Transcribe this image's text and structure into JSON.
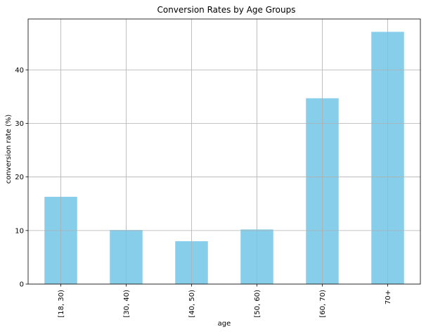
{
  "chart_data": {
    "type": "bar",
    "title": "Conversion Rates by Age Groups",
    "xlabel": "age",
    "ylabel": "conversion rate (%)",
    "categories": [
      "[18, 30)",
      "[30, 40)",
      "[40, 50)",
      "[50, 60)",
      "[60, 70)",
      "70+"
    ],
    "values": [
      16.3,
      10.1,
      8.0,
      10.2,
      34.7,
      47.1
    ],
    "yticks": [
      0,
      10,
      20,
      30,
      40
    ],
    "ylim": [
      0,
      49.5
    ],
    "grid": true,
    "colors": {
      "bar": "#87ceeb",
      "grid": "#b0b0b0",
      "axis": "#000000"
    }
  }
}
